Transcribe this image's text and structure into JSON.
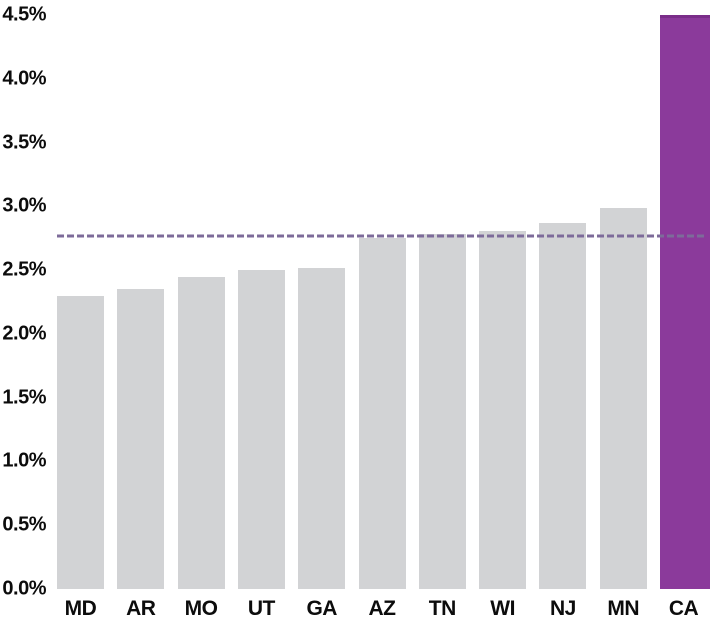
{
  "chart_data": {
    "type": "bar",
    "categories": [
      "MD",
      "AR",
      "MO",
      "UT",
      "GA",
      "AZ",
      "TN",
      "WI",
      "NJ",
      "MN",
      "CA"
    ],
    "values": [
      2.3,
      2.35,
      2.45,
      2.5,
      2.52,
      2.75,
      2.78,
      2.81,
      2.87,
      2.99,
      4.51
    ],
    "highlight_category": "CA",
    "reference_line": {
      "value": 2.77,
      "style": "dashed"
    },
    "y_ticks": [
      "0.0%",
      "0.5%",
      "1.0%",
      "1.5%",
      "2.0%",
      "2.5%",
      "3.0%",
      "3.5%",
      "4.0%",
      "4.5%"
    ],
    "y_tick_values": [
      0,
      0.5,
      1.0,
      1.5,
      2.0,
      2.5,
      3.0,
      3.5,
      4.0,
      4.5
    ],
    "ylim": [
      0,
      4.5
    ],
    "grid": false,
    "legend": false,
    "colors": {
      "bar": "#d2d3d5",
      "highlight": "#8b3a9b",
      "highlight_edge": "#7a2d89",
      "reference_line": "#7d6b9a",
      "text": "#0c0c0c",
      "background": "#ffffff"
    }
  }
}
